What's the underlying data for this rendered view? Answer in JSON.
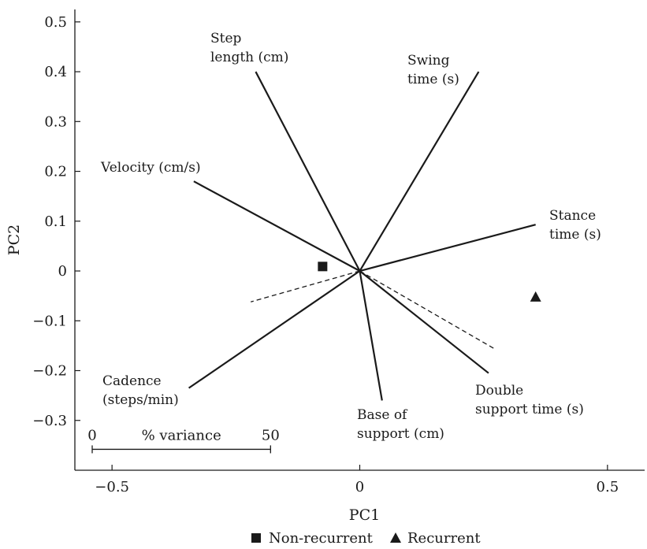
{
  "chart_data": {
    "type": "scatter",
    "subtype": "pca-biplot",
    "title": "",
    "xlabel": "PC1",
    "ylabel": "PC2",
    "xlim": [
      -0.575,
      0.575
    ],
    "ylim": [
      -0.4,
      0.525
    ],
    "x_ticks": [
      -0.5,
      0,
      0.5
    ],
    "x_tick_labels": [
      "−0.5",
      "0",
      "0.5"
    ],
    "y_ticks": [
      0.5,
      0.4,
      0.3,
      0.2,
      0.1,
      0,
      -0.1,
      -0.2,
      -0.3
    ],
    "y_tick_labels": [
      "0.5",
      "0.4",
      "0.3",
      "0.2",
      "0.1",
      "0",
      "−0.1",
      "−0.2",
      "−0.3"
    ],
    "grid": false,
    "vectors": [
      {
        "label_lines": [
          "Step",
          "length (cm)"
        ],
        "x": -0.21,
        "y": 0.4,
        "style": "solid"
      },
      {
        "label_lines": [
          "Swing",
          "time (s)"
        ],
        "x": 0.24,
        "y": 0.4,
        "style": "solid"
      },
      {
        "label_lines": [
          "Velocity (cm/s)"
        ],
        "x": -0.335,
        "y": 0.18,
        "style": "solid"
      },
      {
        "label_lines": [
          "Stance",
          "time (s)"
        ],
        "x": 0.355,
        "y": 0.093,
        "style": "solid"
      },
      {
        "label_lines": [
          "Cadence",
          "(steps/min)"
        ],
        "x": -0.345,
        "y": -0.235,
        "style": "solid"
      },
      {
        "label_lines": [
          "Base of",
          "support (cm)"
        ],
        "x": 0.045,
        "y": -0.26,
        "style": "solid"
      },
      {
        "label_lines": [
          "Double",
          "support time (s)"
        ],
        "x": 0.26,
        "y": -0.205,
        "style": "solid"
      },
      {
        "label_lines": [],
        "x": -0.22,
        "y": -0.062,
        "style": "dashed"
      },
      {
        "label_lines": [],
        "x": 0.275,
        "y": -0.158,
        "style": "dashed"
      }
    ],
    "series": [
      {
        "name": "Non-recurrent",
        "marker": "square",
        "x": -0.075,
        "y": 0.009
      },
      {
        "name": "Recurrent",
        "marker": "triangle",
        "x": 0.355,
        "y": -0.052
      }
    ],
    "scale_bar": {
      "label": "% variance",
      "start_label": "0",
      "end_label": "50",
      "from_x": -0.54,
      "to_x": -0.18,
      "y": -0.358
    },
    "legend_position": "bottom-center",
    "colors": {
      "ink": "#1a1a1a"
    }
  }
}
